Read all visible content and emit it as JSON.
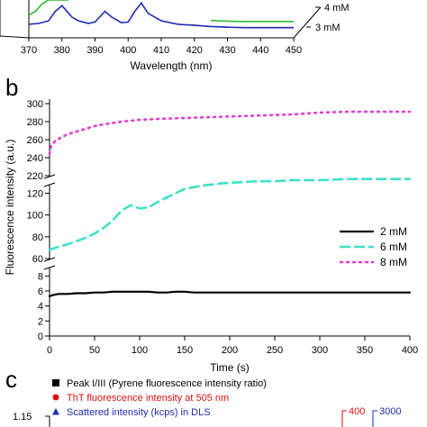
{
  "chart_data": [
    {
      "panel": "a",
      "type": "line",
      "xlabel": "Wavelength (nm)",
      "xlim": [
        370,
        450
      ],
      "x_ticks": [
        "370",
        "380",
        "390",
        "400",
        "410",
        "420",
        "430",
        "440",
        "450"
      ],
      "depth_labels": [
        "4 mM",
        "3 mM"
      ],
      "series": [
        {
          "name": "3 mM",
          "color": "#1f2bb0",
          "x": [
            370,
            373,
            376,
            378,
            380,
            383,
            385,
            388,
            390,
            393,
            395,
            398,
            400,
            402,
            404,
            406,
            410,
            415,
            420,
            425,
            430,
            435,
            440,
            445,
            450
          ],
          "y": [
            0.36,
            0.38,
            0.45,
            0.7,
            0.85,
            0.55,
            0.45,
            0.38,
            0.42,
            0.7,
            0.55,
            0.4,
            0.42,
            0.7,
            0.92,
            0.65,
            0.45,
            0.36,
            0.33,
            0.3,
            0.28,
            0.27,
            0.27,
            0.27,
            0.27
          ]
        },
        {
          "name": "4 mM",
          "color": "#2eb82e",
          "x": [
            370,
            372,
            374,
            376,
            378,
            380,
            382
          ],
          "y": [
            0.6,
            0.7,
            0.9,
            1.0,
            1.0,
            1.0,
            1.0
          ]
        },
        {
          "name": "4 mM",
          "color": "#2eb82e",
          "x": [
            425,
            430,
            435,
            440,
            445,
            450
          ],
          "y": [
            0.46,
            0.44,
            0.43,
            0.43,
            0.43,
            0.43
          ]
        }
      ]
    },
    {
      "panel": "b",
      "type": "line",
      "xlabel": "Time (s)",
      "ylabel": "Fluorescence intensity (a.u.)",
      "xlim": [
        0,
        400
      ],
      "x_ticks": [
        "0",
        "50",
        "100",
        "150",
        "200",
        "250",
        "300",
        "350",
        "400"
      ],
      "y_ticks_upper": [
        "220",
        "240",
        "260",
        "280",
        "300"
      ],
      "y_ticks_middle": [
        "60",
        "80",
        "100",
        "120"
      ],
      "y_ticks_lower": [
        "0",
        "2",
        "4",
        "6",
        "8"
      ],
      "series": [
        {
          "name": "2 mM",
          "color": "#000000",
          "dash": "solid",
          "x": [
            0,
            5,
            10,
            20,
            30,
            40,
            50,
            60,
            70,
            80,
            90,
            100,
            110,
            120,
            130,
            140,
            150,
            160,
            170,
            180,
            190,
            200,
            220,
            240,
            260,
            280,
            300,
            320,
            340,
            360,
            380,
            400
          ],
          "y": [
            5.3,
            5.5,
            5.6,
            5.6,
            5.7,
            5.7,
            5.8,
            5.8,
            5.9,
            5.9,
            5.9,
            5.9,
            5.9,
            5.8,
            5.8,
            5.9,
            5.9,
            5.8,
            5.8,
            5.8,
            5.8,
            5.8,
            5.8,
            5.8,
            5.8,
            5.8,
            5.8,
            5.8,
            5.8,
            5.8,
            5.8,
            5.8
          ]
        },
        {
          "name": "6 mM",
          "color": "#3fe0c8",
          "dash": "dashed",
          "x": [
            0,
            10,
            20,
            30,
            40,
            50,
            60,
            70,
            80,
            90,
            100,
            110,
            120,
            130,
            140,
            150,
            170,
            190,
            210,
            230,
            250,
            270,
            300,
            330,
            360,
            400
          ],
          "y": [
            68,
            71,
            73,
            76,
            79,
            83,
            88,
            95,
            104,
            109,
            106,
            107,
            112,
            116,
            120,
            124,
            127,
            129,
            130,
            131,
            131,
            132,
            132,
            133,
            133,
            133
          ]
        },
        {
          "name": "8 mM",
          "color": "#e040d0",
          "dash": "dotted",
          "x": [
            0,
            2,
            6,
            12,
            20,
            30,
            40,
            50,
            60,
            80,
            100,
            120,
            150,
            180,
            210,
            240,
            270,
            300,
            330,
            360,
            400
          ],
          "y": [
            244,
            254,
            258,
            262,
            266,
            269,
            272,
            275,
            277,
            280,
            282,
            283,
            284,
            285,
            286,
            287,
            288,
            290,
            291,
            291,
            291
          ]
        }
      ]
    },
    {
      "panel": "c",
      "type": "scatter",
      "legend": [
        {
          "marker": "square",
          "color": "#000000",
          "label": "Peak I/III (Pyrene fluorescence intensity ratio)"
        },
        {
          "marker": "circle",
          "color": "#dd1111",
          "label": "ThT fluorescence intensity at 505 nm"
        },
        {
          "marker": "triangle",
          "color": "#1f2bb0",
          "label": "Scattered intensity (kcps) in DLS"
        }
      ],
      "y_tick_left": "1.15",
      "y_tick_right_red": "400",
      "y_tick_right_blue": "3000"
    }
  ],
  "panel_labels": {
    "b": "b",
    "c": "c"
  }
}
